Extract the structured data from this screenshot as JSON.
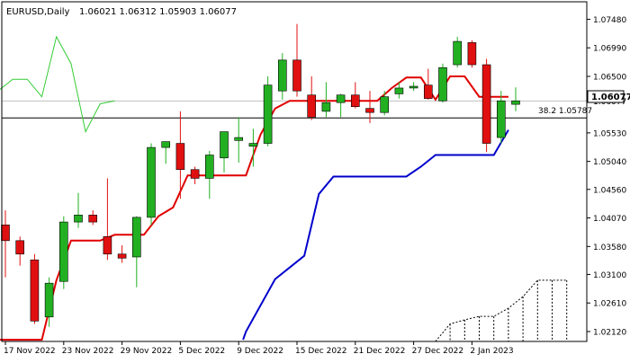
{
  "symbol_label": "EURUSD,Daily",
  "ohlc_label": "1.06021 1.06312 1.05903 1.06077",
  "price_tag": "1.06077",
  "fib_label": "38.2 1.05787",
  "colors": {
    "bull": "#22b022",
    "bear": "#e01010",
    "tenkan": "#e00000",
    "kijun": "#0000cc",
    "chikou": "#33cc33",
    "cloud": "#000000"
  },
  "chart_data": {
    "type": "candlestick",
    "symbol": "EURUSD",
    "timeframe": "Daily",
    "ylim": [
      1.0195,
      1.0778
    ],
    "y_ticks": [
      "1.07480",
      "1.06990",
      "1.06500",
      "1.06077",
      "1.05530",
      "1.05040",
      "1.04560",
      "1.04070",
      "1.03580",
      "1.03100",
      "1.02610",
      "1.02120"
    ],
    "x_ticks": [
      {
        "bar": 0,
        "label": "17 Nov 2022"
      },
      {
        "bar": 4,
        "label": "23 Nov 2022"
      },
      {
        "bar": 8,
        "label": "29 Nov 2022"
      },
      {
        "bar": 12,
        "label": "5 Dec 2022"
      },
      {
        "bar": 16,
        "label": "9 Dec 2022"
      },
      {
        "bar": 20,
        "label": "15 Dec 2022"
      },
      {
        "bar": 24,
        "label": "21 Dec 2022"
      },
      {
        "bar": 28,
        "label": "27 Dec 2022"
      },
      {
        "bar": 32,
        "label": "2 Jan 2023"
      }
    ],
    "candles": [
      {
        "o": 1.0395,
        "h": 1.042,
        "l": 1.0305,
        "c": 1.0368
      },
      {
        "o": 1.0368,
        "h": 1.0375,
        "l": 1.0325,
        "c": 1.0345
      },
      {
        "o": 1.0335,
        "h": 1.0345,
        "l": 1.0225,
        "c": 1.023
      },
      {
        "o": 1.0237,
        "h": 1.0305,
        "l": 1.022,
        "c": 1.0295
      },
      {
        "o": 1.0298,
        "h": 1.041,
        "l": 1.0285,
        "c": 1.04
      },
      {
        "o": 1.04,
        "h": 1.045,
        "l": 1.039,
        "c": 1.0412
      },
      {
        "o": 1.0412,
        "h": 1.042,
        "l": 1.0395,
        "c": 1.04
      },
      {
        "o": 1.0375,
        "h": 1.0475,
        "l": 1.0335,
        "c": 1.0345
      },
      {
        "o": 1.0345,
        "h": 1.036,
        "l": 1.033,
        "c": 1.0338
      },
      {
        "o": 1.034,
        "h": 1.041,
        "l": 1.0288,
        "c": 1.0408
      },
      {
        "o": 1.0408,
        "h": 1.0535,
        "l": 1.0395,
        "c": 1.0528
      },
      {
        "o": 1.0528,
        "h": 1.0538,
        "l": 1.05,
        "c": 1.0538
      },
      {
        "o": 1.0535,
        "h": 1.059,
        "l": 1.044,
        "c": 1.049
      },
      {
        "o": 1.049,
        "h": 1.0495,
        "l": 1.0465,
        "c": 1.0475
      },
      {
        "o": 1.0475,
        "h": 1.0522,
        "l": 1.044,
        "c": 1.0515
      },
      {
        "o": 1.051,
        "h": 1.0555,
        "l": 1.0485,
        "c": 1.0555
      },
      {
        "o": 1.054,
        "h": 1.058,
        "l": 1.0502,
        "c": 1.0545
      },
      {
        "o": 1.053,
        "h": 1.056,
        "l": 1.0495,
        "c": 1.0535
      },
      {
        "o": 1.0535,
        "h": 1.065,
        "l": 1.053,
        "c": 1.0635
      },
      {
        "o": 1.0625,
        "h": 1.069,
        "l": 1.061,
        "c": 1.0678
      },
      {
        "o": 1.0678,
        "h": 1.074,
        "l": 1.0615,
        "c": 1.0625
      },
      {
        "o": 1.0618,
        "h": 1.065,
        "l": 1.0575,
        "c": 1.058
      },
      {
        "o": 1.059,
        "h": 1.064,
        "l": 1.058,
        "c": 1.0605
      },
      {
        "o": 1.0605,
        "h": 1.062,
        "l": 1.058,
        "c": 1.0618
      },
      {
        "o": 1.0618,
        "h": 1.064,
        "l": 1.0595,
        "c": 1.0598
      },
      {
        "o": 1.0595,
        "h": 1.0625,
        "l": 1.057,
        "c": 1.0588
      },
      {
        "o": 1.0588,
        "h": 1.0625,
        "l": 1.0583,
        "c": 1.0615
      },
      {
        "o": 1.062,
        "h": 1.064,
        "l": 1.0612,
        "c": 1.063
      },
      {
        "o": 1.063,
        "h": 1.064,
        "l": 1.0625,
        "c": 1.0633
      },
      {
        "o": 1.0635,
        "h": 1.0663,
        "l": 1.061,
        "c": 1.0612
      },
      {
        "o": 1.0608,
        "h": 1.0672,
        "l": 1.0605,
        "c": 1.0665
      },
      {
        "o": 1.067,
        "h": 1.0718,
        "l": 1.0665,
        "c": 1.071
      },
      {
        "o": 1.0708,
        "h": 1.0712,
        "l": 1.0665,
        "c": 1.067
      },
      {
        "o": 1.067,
        "h": 1.068,
        "l": 1.052,
        "c": 1.0535
      },
      {
        "o": 1.0545,
        "h": 1.0625,
        "l": 1.0535,
        "c": 1.0608
      },
      {
        "o": 1.0602,
        "h": 1.0631,
        "l": 1.059,
        "c": 1.0608
      }
    ],
    "kijun": [
      [
        -0.5,
        1.0198
      ],
      [
        2.5,
        1.0198
      ],
      [
        3.5,
        1.03
      ],
      [
        4.5,
        1.0368
      ],
      [
        5.5,
        1.0368
      ],
      [
        6.5,
        1.0368
      ],
      [
        7.5,
        1.0378
      ],
      [
        8.5,
        1.0378
      ],
      [
        9.5,
        1.0378
      ],
      [
        10.5,
        1.041
      ],
      [
        11.5,
        1.0425
      ],
      [
        12.5,
        1.048
      ],
      [
        13.5,
        1.048
      ],
      [
        15.5,
        1.048
      ],
      [
        16.5,
        1.048
      ],
      [
        17.5,
        1.055
      ],
      [
        18.5,
        1.0595
      ],
      [
        19.5,
        1.0608
      ],
      [
        20.5,
        1.0608
      ],
      [
        21.5,
        1.0608
      ],
      [
        25.5,
        1.0608
      ],
      [
        26.5,
        1.063
      ],
      [
        27.5,
        1.0648
      ],
      [
        28.5,
        1.0648
      ],
      [
        29.5,
        1.061
      ],
      [
        30.5,
        1.065
      ],
      [
        31.5,
        1.065
      ],
      [
        32.5,
        1.0615
      ],
      [
        34.5,
        1.0615
      ]
    ],
    "tenkan": [
      [
        16.3,
        1.0198
      ],
      [
        16.5,
        1.0212
      ],
      [
        18.5,
        1.0302
      ],
      [
        19.5,
        1.0322
      ],
      [
        20.5,
        1.0342
      ],
      [
        21.5,
        1.0448
      ],
      [
        22.5,
        1.0478
      ],
      [
        23.5,
        1.0478
      ],
      [
        27.5,
        1.0478
      ],
      [
        28.5,
        1.0495
      ],
      [
        29.5,
        1.0515
      ],
      [
        30.5,
        1.0515
      ],
      [
        31.5,
        1.0515
      ],
      [
        32.5,
        1.0515
      ],
      [
        33.5,
        1.0515
      ],
      [
        34.5,
        1.0558
      ]
    ],
    "chikou": [
      [
        -0.5,
        1.0625
      ],
      [
        0.5,
        1.0645
      ],
      [
        1.5,
        1.0645
      ],
      [
        2.5,
        1.0615
      ],
      [
        3.5,
        1.0718
      ],
      [
        4.5,
        1.0672
      ],
      [
        5.5,
        1.0555
      ],
      [
        6.5,
        1.0603
      ],
      [
        7.5,
        1.0608
      ]
    ],
    "cloud_edge": [
      [
        29.5,
        1.0195
      ],
      [
        30.5,
        1.0225
      ],
      [
        31.5,
        1.0232
      ],
      [
        32.5,
        1.0238
      ],
      [
        33.5,
        1.0238
      ],
      [
        34.5,
        1.0252
      ],
      [
        35.5,
        1.0272
      ],
      [
        36.5,
        1.03
      ],
      [
        37.5,
        1.03
      ],
      [
        38.5,
        1.03
      ]
    ],
    "fib_level": 1.05787
  }
}
